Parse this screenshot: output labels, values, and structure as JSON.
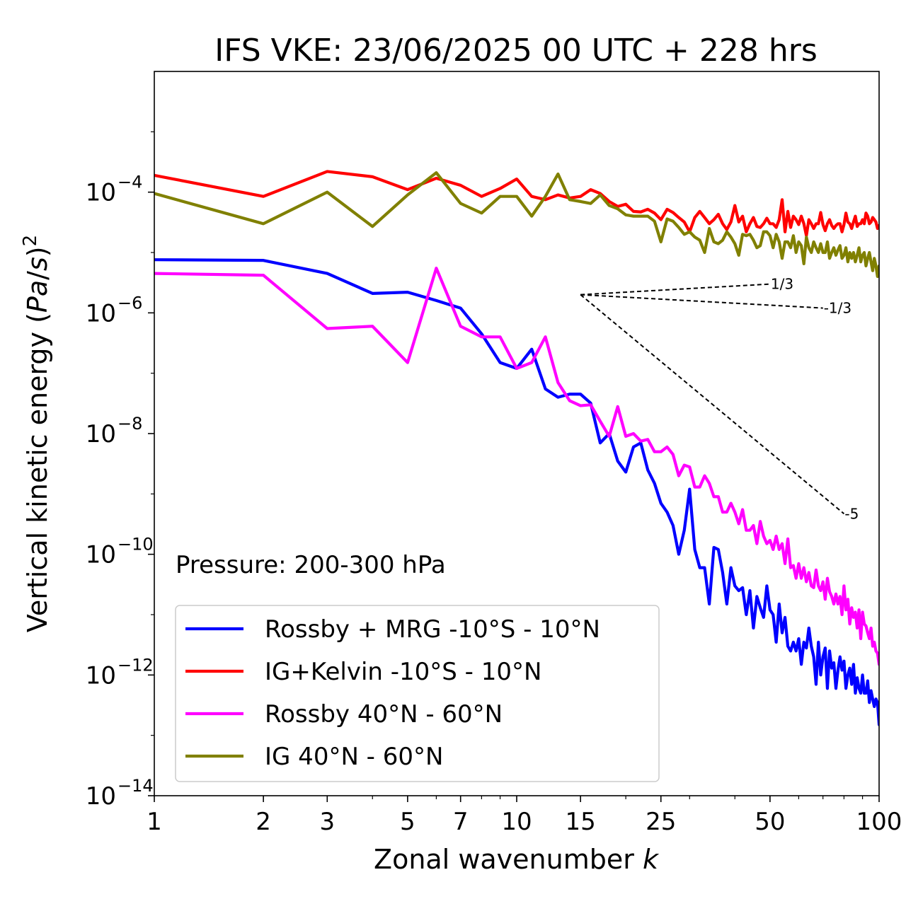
{
  "chart_data": {
    "type": "line",
    "title": "IFS VKE: 23/06/2025 00 UTC + 228 hrs",
    "xlabel": "Zonal wavenumber k",
    "ylabel": "Vertical kinetic energy (Pa/s)²",
    "xscale": "log",
    "yscale": "log",
    "xlim": [
      1,
      100
    ],
    "ylim": [
      1e-14,
      0.01
    ],
    "x_ticks": [
      1,
      2,
      3,
      5,
      7,
      10,
      15,
      25,
      50,
      100
    ],
    "y_ticks": [
      1e-14,
      1e-12,
      1e-10,
      1e-08,
      1e-06,
      0.0001
    ],
    "y_tick_exponents": [
      "−14",
      "−12",
      "−10",
      "−8",
      "−6",
      "−4"
    ],
    "grid": false,
    "legend_position": "lower-left",
    "annotation": "Pressure: 200-300 hPa",
    "x": [
      1,
      2,
      3,
      4,
      5,
      6,
      7,
      8,
      9,
      10,
      11,
      12,
      13,
      14,
      15,
      16,
      17,
      18,
      19,
      20,
      21,
      22,
      23,
      24,
      25,
      26,
      27,
      28,
      29,
      30,
      31,
      32,
      33,
      34,
      35,
      36,
      37,
      38,
      39,
      40,
      41,
      42,
      43,
      44,
      45,
      46,
      47,
      48,
      49,
      50,
      51,
      52,
      53,
      54,
      55,
      56,
      57,
      58,
      59,
      60,
      61,
      62,
      63,
      64,
      65,
      66,
      67,
      68,
      69,
      70,
      71,
      72,
      73,
      74,
      75,
      76,
      77,
      78,
      79,
      80,
      81,
      82,
      83,
      84,
      85,
      86,
      87,
      88,
      89,
      90,
      91,
      92,
      93,
      94,
      95,
      96,
      97,
      98,
      99,
      100
    ],
    "series": [
      {
        "name": "Rossby + MRG -10°S - 10°N",
        "color": "#0000ff",
        "values": [
          7.6e-06,
          7.4e-06,
          4.5e-06,
          2.1e-06,
          2.2e-06,
          1.6e-06,
          1.2e-06,
          4.5e-07,
          1.5e-07,
          1.2e-07,
          2.5e-07,
          5.5e-08,
          4e-08,
          4.5e-08,
          4.5e-08,
          3.2e-08,
          7e-09,
          1e-08,
          3.5e-09,
          2.3e-09,
          6e-09,
          7e-09,
          2.5e-09,
          1.5e-09,
          7e-10,
          5e-10,
          3e-10,
          1e-10,
          2.5e-10,
          1.2e-09,
          1.2e-10,
          6e-11,
          6e-11,
          1.5e-11,
          1.3e-10,
          1.2e-10,
          5e-11,
          1.5e-11,
          6e-11,
          3e-11,
          2.5e-11,
          2.8e-11,
          1e-11,
          2.5e-11,
          6e-12,
          2e-11,
          1.3e-11,
          9e-12,
          3e-11,
          1.2e-11,
          1e-11,
          3.5e-12,
          1.5e-11,
          5e-12,
          9e-12,
          3e-12,
          2.5e-12,
          3.5e-12,
          2.5e-12,
          4e-12,
          1.5e-12,
          3.5e-12,
          2.8e-12,
          6e-12,
          3e-12,
          2e-12,
          7e-13,
          3.5e-12,
          1e-12,
          2e-12,
          2.8e-12,
          6e-13,
          2.5e-12,
          1.3e-12,
          1.6e-12,
          6e-13,
          1.2e-12,
          2e-12,
          1.2e-12,
          1.7e-12,
          6e-13,
          1e-12,
          1.3e-12,
          7e-13,
          1.5e-12,
          5e-13,
          9e-13,
          6e-13,
          5e-13,
          1e-12,
          5e-13,
          5e-13,
          8e-13,
          3.5e-13,
          5.5e-13,
          4e-13,
          3e-13,
          4e-13,
          3.5e-13,
          1.5e-13
        ]
      },
      {
        "name": "IG+Kelvin -10°S - 10°N",
        "color": "#ff0000",
        "values": [
          0.00019,
          8.5e-05,
          0.00022,
          0.00018,
          0.00011,
          0.00017,
          0.00013,
          8.5e-05,
          0.000115,
          0.000165,
          8.5e-05,
          7.5e-05,
          9e-05,
          8e-05,
          8.5e-05,
          0.00011,
          9.5e-05,
          7e-05,
          5.8e-05,
          6.3e-05,
          4.8e-05,
          4.7e-05,
          5.2e-05,
          4.5e-05,
          3.5e-05,
          5.2e-05,
          4.6e-05,
          3.8e-05,
          3.2e-05,
          2.2e-05,
          3.8e-05,
          4.8e-05,
          3.8e-05,
          3e-05,
          3.5e-05,
          4.3e-05,
          3e-05,
          2.4e-05,
          3.2e-05,
          6e-05,
          3.2e-05,
          4e-05,
          2.2e-05,
          3e-05,
          3.8e-05,
          2.7e-05,
          2.6e-05,
          3e-05,
          3.7e-05,
          3e-05,
          3e-05,
          2.6e-05,
          3.5e-05,
          7.5e-05,
          2.2e-05,
          4.8e-05,
          2.6e-05,
          4e-05,
          3.5e-05,
          2.9e-05,
          4e-05,
          3e-05,
          1.9e-05,
          3.5e-05,
          3e-05,
          2.5e-05,
          3e-05,
          3e-05,
          4.6e-05,
          2.9e-05,
          2.3e-05,
          3e-05,
          3.5e-05,
          2.8e-05,
          2.5e-05,
          2.8e-05,
          3e-05,
          3e-05,
          2.2e-05,
          2.9e-05,
          4.5e-05,
          3.2e-05,
          3e-05,
          2.5e-05,
          3.2e-05,
          4e-05,
          2.7e-05,
          3e-05,
          3e-05,
          3.5e-05,
          3e-05,
          4.5e-05,
          4e-05,
          3e-05,
          3.2e-05,
          3.8e-05,
          3.5e-05,
          3.2e-05,
          2.5e-05,
          2.8e-05
        ]
      },
      {
        "name": "Rossby 40°N - 60°N",
        "color": "#ff00ff",
        "values": [
          4.5e-06,
          4.2e-06,
          5.5e-07,
          6e-07,
          1.5e-07,
          5.5e-06,
          6e-07,
          4e-07,
          4e-07,
          1.2e-07,
          1.5e-07,
          4e-07,
          7e-08,
          3.5e-08,
          2.9e-08,
          3e-08,
          1.6e-08,
          9e-09,
          2.8e-08,
          9e-09,
          1e-08,
          7.5e-09,
          8e-09,
          5e-09,
          5e-09,
          6e-09,
          4.5e-09,
          2e-09,
          3e-09,
          2.8e-09,
          1.3e-09,
          1.3e-09,
          2e-09,
          1.5e-09,
          9e-10,
          9e-10,
          5e-10,
          5e-10,
          7e-10,
          5e-10,
          3.2e-10,
          5.5e-10,
          2.5e-10,
          2.5e-10,
          3e-10,
          1.5e-10,
          3.5e-10,
          2e-10,
          1.5e-10,
          1.7e-10,
          1.2e-10,
          2e-10,
          1.2e-10,
          1.5e-10,
          7e-11,
          1.8e-10,
          6e-11,
          6.5e-11,
          4e-11,
          7e-11,
          4e-11,
          6e-11,
          3.5e-11,
          5e-11,
          3e-11,
          2.8e-11,
          5.5e-11,
          3e-11,
          2.5e-11,
          3.5e-11,
          1.8e-11,
          4e-11,
          2.4e-11,
          2e-11,
          1.5e-11,
          2.2e-11,
          1.5e-11,
          2e-11,
          1e-11,
          3e-11,
          1.2e-11,
          1.8e-11,
          7e-12,
          1.3e-11,
          9e-12,
          1.1e-11,
          6e-12,
          1.2e-11,
          4e-12,
          1.1e-11,
          7e-12,
          6.5e-12,
          5e-12,
          4e-12,
          6e-12,
          3e-12,
          3.5e-12,
          2.5e-12,
          2.3e-12,
          1.5e-12
        ]
      },
      {
        "name": "IG 40°N - 60°N",
        "color": "#808000",
        "values": [
          9.5e-05,
          3e-05,
          0.0001,
          2.7e-05,
          9e-05,
          0.00021,
          6.5e-05,
          4.5e-05,
          8.5e-05,
          8.5e-05,
          4e-05,
          8.5e-05,
          0.0002,
          7.5e-05,
          7e-05,
          6.5e-05,
          9e-05,
          6e-05,
          5.3e-05,
          4.2e-05,
          4e-05,
          4e-05,
          4e-05,
          3.3e-05,
          1.5e-05,
          3.6e-05,
          3.3e-05,
          2.6e-05,
          2e-05,
          2.2e-05,
          1.8e-05,
          1.6e-05,
          1e-05,
          2.5e-05,
          1.5e-05,
          1.4e-05,
          1.6e-05,
          2.2e-05,
          1.8e-05,
          1.4e-05,
          9e-06,
          2e-05,
          1.9e-05,
          2e-05,
          1.6e-05,
          1.2e-05,
          1.3e-05,
          2.2e-05,
          2.2e-05,
          1.9e-05,
          1.2e-05,
          2e-05,
          1.5e-05,
          8e-06,
          1.5e-05,
          1.5e-05,
          1.2e-05,
          1.9e-05,
          1e-05,
          1.5e-05,
          1.3e-05,
          6.5e-06,
          1.8e-05,
          1.2e-05,
          1e-05,
          1.5e-05,
          1.2e-05,
          1e-05,
          1.4e-05,
          1e-05,
          1e-05,
          1.5e-05,
          8e-06,
          1e-05,
          1.2e-05,
          9e-06,
          1.1e-05,
          1.3e-05,
          8e-06,
          9e-06,
          1.2e-05,
          7e-06,
          1e-05,
          8e-06,
          1e-05,
          7e-06,
          9e-06,
          1.2e-05,
          7e-06,
          9e-06,
          1e-05,
          6e-06,
          8e-06,
          1e-05,
          7e-06,
          5e-06,
          8e-06,
          6e-06,
          4e-06,
          6e-06
        ]
      }
    ],
    "reference_slopes": [
      {
        "label": "1/3",
        "x": [
          15,
          50
        ],
        "y": [
          2e-06,
          3e-06
        ]
      },
      {
        "label": "-1/3",
        "x": [
          15,
          70
        ],
        "y": [
          2e-06,
          1.2e-06
        ]
      },
      {
        "label": "-5",
        "x": [
          15,
          80
        ],
        "y": [
          2e-06,
          4.7e-10
        ]
      }
    ]
  }
}
